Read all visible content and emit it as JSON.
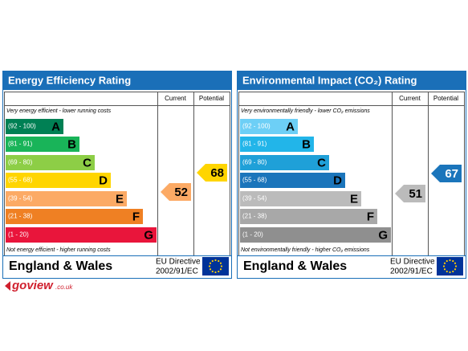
{
  "panels": [
    {
      "title": "Energy Efficiency Rating",
      "headers": [
        "Current",
        "Potential"
      ],
      "top_note": "Very energy efficient - lower running costs",
      "bottom_note": "Not energy efficient - higher running costs",
      "bands": [
        {
          "range": "(92 - 100)",
          "letter": "A",
          "color": "#008054"
        },
        {
          "range": "(81 - 91)",
          "letter": "B",
          "color": "#19b459"
        },
        {
          "range": "(69 - 80)",
          "letter": "C",
          "color": "#8dce46"
        },
        {
          "range": "(55 - 68)",
          "letter": "D",
          "color": "#ffd500"
        },
        {
          "range": "(39 - 54)",
          "letter": "E",
          "color": "#fcaa65"
        },
        {
          "range": "(21 - 38)",
          "letter": "F",
          "color": "#ef8023"
        },
        {
          "range": "(1 - 20)",
          "letter": "G",
          "color": "#e9153b"
        }
      ],
      "current": {
        "value": 52,
        "color": "#fcaa65"
      },
      "potential": {
        "value": 68,
        "color": "#ffd500"
      },
      "footer": {
        "region": "England & Wales",
        "directive": "EU Directive",
        "directive_code": "2002/91/EC"
      }
    },
    {
      "title": "Environmental Impact (CO₂) Rating",
      "headers": [
        "Current",
        "Potential"
      ],
      "top_note": "Very environmentally friendly - lower CO₂ emissions",
      "bottom_note": "Not environmentally friendly - higher CO₂ emissions",
      "bands": [
        {
          "range": "(92 - 100)",
          "letter": "A",
          "color": "#6dcff6"
        },
        {
          "range": "(81 - 91)",
          "letter": "B",
          "color": "#22b5e9"
        },
        {
          "range": "(69 - 80)",
          "letter": "C",
          "color": "#1fa0d8"
        },
        {
          "range": "(55 - 68)",
          "letter": "D",
          "color": "#1b75bb"
        },
        {
          "range": "(39 - 54)",
          "letter": "E",
          "color": "#bbbbbb"
        },
        {
          "range": "(21 - 38)",
          "letter": "F",
          "color": "#a8a8a8"
        },
        {
          "range": "(1 - 20)",
          "letter": "G",
          "color": "#8f8f8f"
        }
      ],
      "current": {
        "value": 51,
        "color": "#bbbbbb"
      },
      "potential": {
        "value": 67,
        "color": "#1b75bb"
      },
      "footer": {
        "region": "England & Wales",
        "directive": "EU Directive",
        "directive_code": "2002/91/EC"
      }
    }
  ],
  "logo": {
    "brand": "goview",
    "suffix": ".co.uk"
  }
}
